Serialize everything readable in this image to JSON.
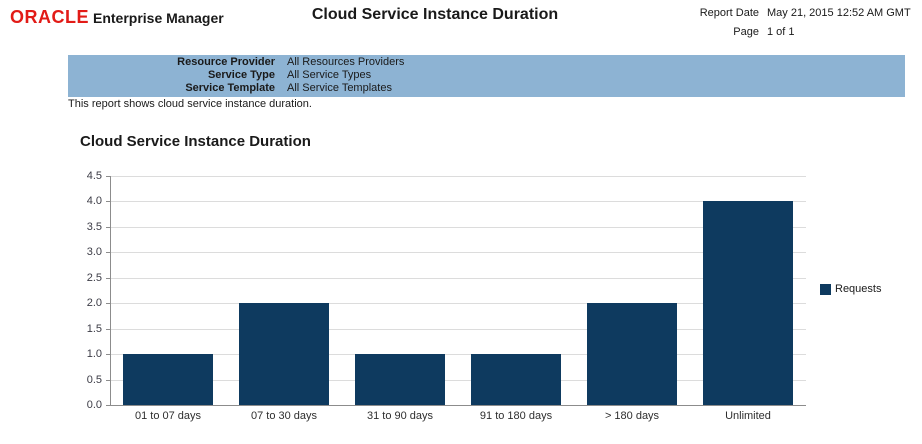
{
  "header": {
    "logo": "ORACLE",
    "logo_suffix": "Enterprise Manager",
    "title": "Cloud Service Instance Duration",
    "report_date_label": "Report Date",
    "report_date_value": "May 21, 2015 12:52 AM GMT",
    "page_label": "Page",
    "page_value": "1 of 1"
  },
  "parameters": {
    "rows": [
      {
        "label": "Resource Provider",
        "value": "All Resources Providers"
      },
      {
        "label": "Service Type",
        "value": "All Service Types"
      },
      {
        "label": "Service Template",
        "value": "All Service Templates"
      }
    ]
  },
  "description": "This report shows cloud service instance duration.",
  "section_title": "Cloud Service Instance Duration",
  "chart_data": {
    "type": "bar",
    "title": "Cloud Service Instance Duration",
    "categories": [
      "01 to 07 days",
      "07 to 30 days",
      "31 to 90 days",
      "91 to 180 days",
      "> 180 days",
      "Unlimited"
    ],
    "series": [
      {
        "name": "Requests",
        "values": [
          1,
          2,
          1,
          1,
          2,
          4
        ]
      }
    ],
    "xlabel": "",
    "ylabel": "",
    "ylim": [
      0,
      4.5
    ],
    "ytick_step": 0.5,
    "grid": true,
    "legend_position": "right",
    "bar_color": "#0e3a5f"
  },
  "colors": {
    "bar": "#0e3a5f",
    "param_box_background": "#8db3d3",
    "oracle_red": "#e21b17",
    "gridline": "#dcdcdc",
    "axis": "#8c8c8c"
  }
}
